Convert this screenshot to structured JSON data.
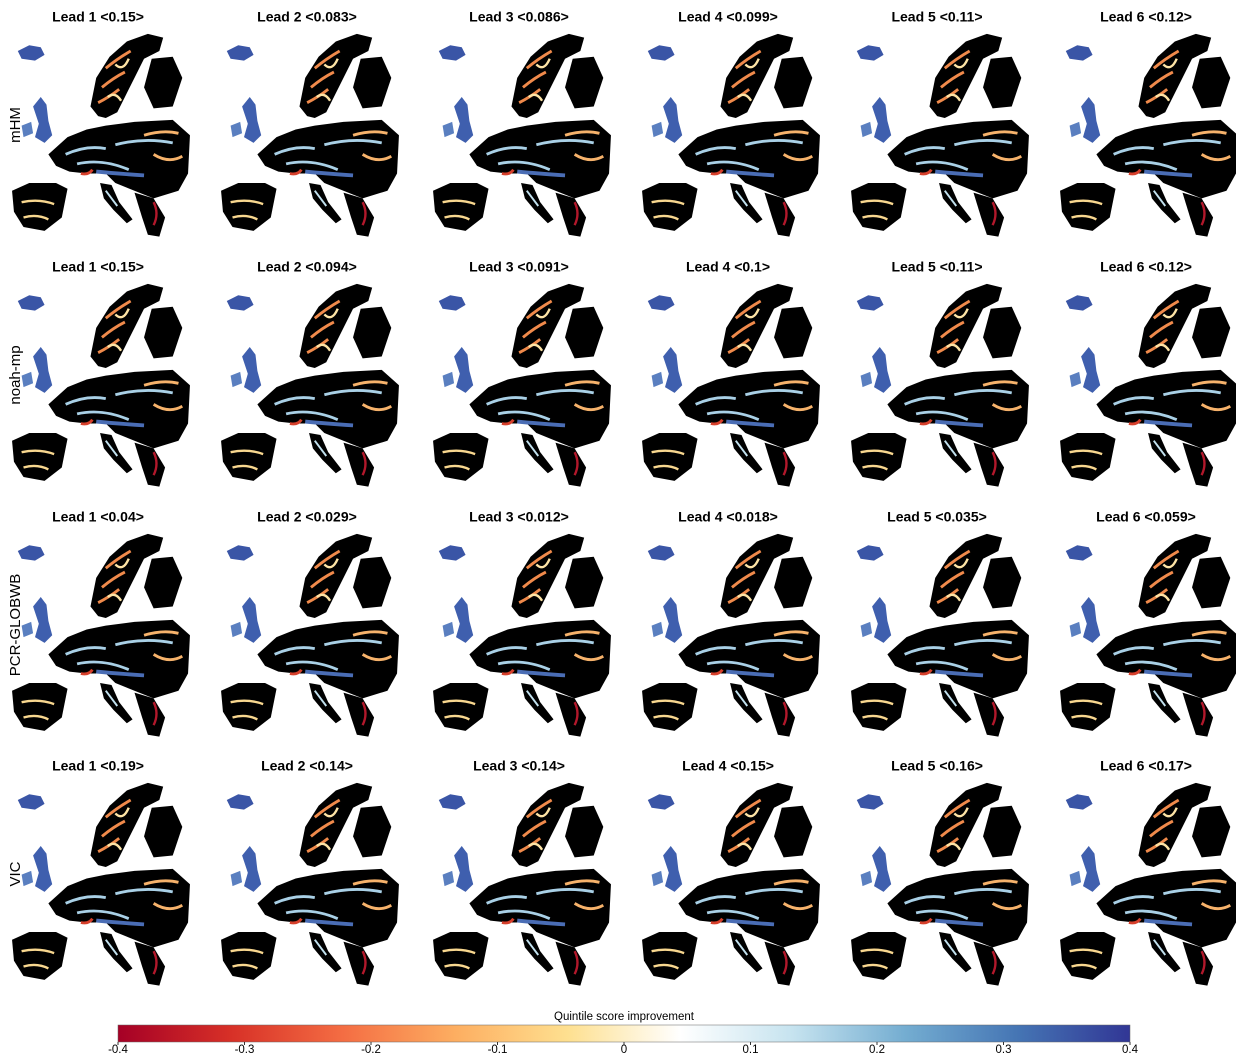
{
  "rows": [
    {
      "label": "mHM",
      "panels": [
        "Lead 1 <0.15>",
        "Lead 2 <0.083>",
        "Lead 3 <0.086>",
        "Lead 4 <0.099>",
        "Lead 5 <0.11>",
        "Lead 6 <0.12>"
      ]
    },
    {
      "label": "noah-mp",
      "panels": [
        "Lead 1 <0.15>",
        "Lead 2 <0.094>",
        "Lead 3 <0.091>",
        "Lead 4 <0.1>",
        "Lead 5 <0.11>",
        "Lead 6 <0.12>"
      ]
    },
    {
      "label": "PCR-GLOBWB",
      "panels": [
        "Lead 1 <0.04>",
        "Lead 2 <0.029>",
        "Lead 3 <0.012>",
        "Lead 4 <0.018>",
        "Lead 5 <0.035>",
        "Lead 6 <0.059>"
      ]
    },
    {
      "label": "VIC",
      "panels": [
        "Lead 1 <0.19>",
        "Lead 2 <0.14>",
        "Lead 3 <0.14>",
        "Lead 4 <0.15>",
        "Lead 5 <0.16>",
        "Lead 6 <0.17>"
      ]
    }
  ],
  "colorbar": {
    "title": "Quintile score improvement",
    "lim": [
      -0.4,
      0.4
    ],
    "ticks": [
      -0.4,
      -0.3,
      -0.2,
      -0.1,
      0,
      0.1,
      0.2,
      0.3,
      0.4
    ],
    "colors": [
      "#a50026",
      "#d73027",
      "#f46d43",
      "#fdae61",
      "#fee090",
      "#ffffff",
      "#c6e3ef",
      "#74add1",
      "#4575b4",
      "#313695"
    ]
  }
}
